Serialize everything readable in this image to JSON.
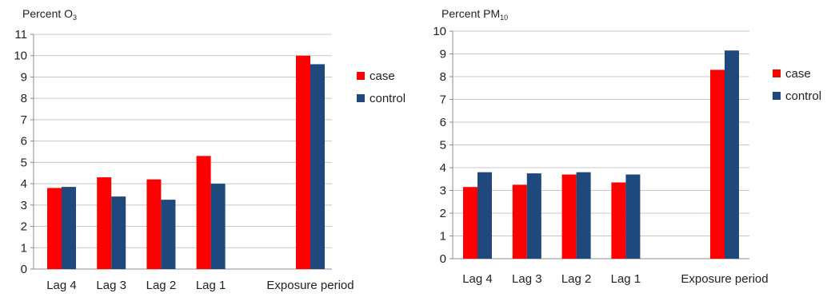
{
  "chart_data": [
    {
      "type": "bar",
      "title": "Percent O3",
      "title_main": "Percent O",
      "title_sub": "3",
      "categories": [
        "Lag 4",
        "Lag 3",
        "Lag 2",
        "Lag 1",
        "",
        "Exposure period"
      ],
      "series": [
        {
          "name": "case",
          "color": "#ff0000",
          "values": [
            3.8,
            4.3,
            4.2,
            5.3,
            null,
            10.0
          ]
        },
        {
          "name": "control",
          "color": "#1f497d",
          "values": [
            3.85,
            3.4,
            3.25,
            4.0,
            null,
            9.6
          ]
        }
      ],
      "ylim": [
        0,
        11
      ],
      "yticks": [
        0,
        1,
        2,
        3,
        4,
        5,
        6,
        7,
        8,
        9,
        10,
        11
      ],
      "grid": true,
      "legend": "right"
    },
    {
      "type": "bar",
      "title": "Percent PM10",
      "title_main": "Percent PM",
      "title_sub": "10",
      "categories": [
        "Lag 4",
        "Lag 3",
        "Lag 2",
        "Lag 1",
        "",
        "Exposure period"
      ],
      "series": [
        {
          "name": "case",
          "color": "#ff0000",
          "values": [
            3.15,
            3.25,
            3.7,
            3.35,
            null,
            8.3
          ]
        },
        {
          "name": "control",
          "color": "#1f497d",
          "values": [
            3.8,
            3.75,
            3.8,
            3.7,
            null,
            9.15
          ]
        }
      ],
      "ylim": [
        0,
        10
      ],
      "yticks": [
        0,
        1,
        2,
        3,
        4,
        5,
        6,
        7,
        8,
        9,
        10
      ],
      "grid": true,
      "legend": "right"
    }
  ]
}
